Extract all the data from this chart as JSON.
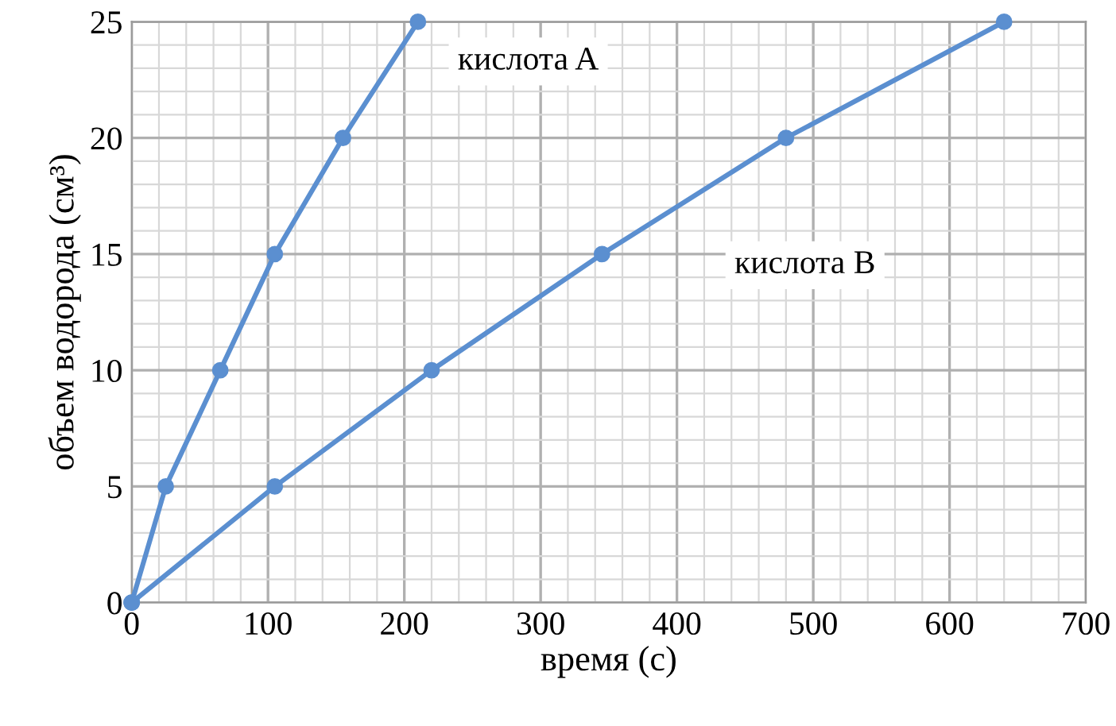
{
  "chart_data": {
    "type": "line",
    "xlabel": "время (с)",
    "ylabel": "объем водорода (см³)",
    "series": [
      {
        "name": "кислота A",
        "color": "#5b8fd0",
        "x": [
          0,
          25,
          65,
          105,
          155,
          210
        ],
        "values": [
          0,
          5,
          10,
          15,
          20,
          25
        ]
      },
      {
        "name": "кислота B",
        "color": "#5b8fd0",
        "x": [
          0,
          105,
          220,
          345,
          480,
          640
        ],
        "values": [
          0,
          5,
          10,
          15,
          20,
          25
        ]
      }
    ],
    "xlim": [
      0,
      700
    ],
    "xticks": [
      0,
      100,
      200,
      300,
      400,
      500,
      600,
      700
    ],
    "ylim": [
      0,
      25
    ],
    "yticks": [
      0,
      5,
      10,
      15,
      20,
      25
    ],
    "grid": true,
    "legend": false,
    "marker": "circle",
    "line_style": "solid"
  }
}
